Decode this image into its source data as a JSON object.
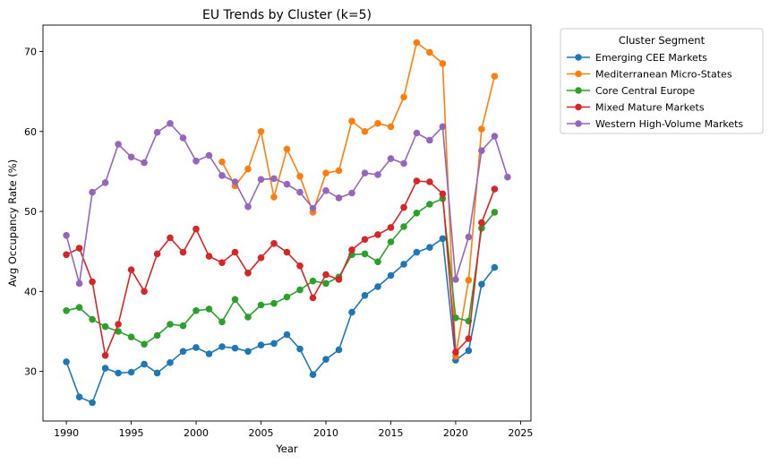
{
  "chart_data": {
    "type": "line",
    "title": "EU Trends by Cluster (k=5)",
    "xlabel": "Year",
    "ylabel": "Avg Occupancy Rate (%)",
    "xlim": [
      1988.2,
      2025.8
    ],
    "ylim": [
      23.8,
      73.3
    ],
    "x_ticks": [
      1990,
      1995,
      2000,
      2005,
      2010,
      2015,
      2020,
      2025
    ],
    "y_ticks": [
      30,
      40,
      50,
      60,
      70
    ],
    "grid": false,
    "legend": {
      "title": "Cluster Segment",
      "placement": "outside-right"
    },
    "series": [
      {
        "name": "Emerging CEE Markets",
        "color": "#1f77b4",
        "x": [
          1990,
          1991,
          1992,
          1993,
          1994,
          1995,
          1996,
          1997,
          1998,
          1999,
          2000,
          2001,
          2002,
          2003,
          2004,
          2005,
          2006,
          2007,
          2008,
          2009,
          2010,
          2011,
          2012,
          2013,
          2014,
          2015,
          2016,
          2017,
          2018,
          2019,
          2020,
          2021,
          2022,
          2023
        ],
        "values": [
          31.2,
          26.8,
          26.1,
          30.4,
          29.8,
          29.9,
          30.9,
          29.8,
          31.1,
          32.5,
          33.0,
          32.2,
          33.1,
          32.9,
          32.5,
          33.3,
          33.5,
          34.6,
          32.8,
          29.6,
          31.5,
          32.7,
          37.4,
          39.5,
          40.6,
          42.0,
          43.4,
          44.9,
          45.5,
          46.6,
          31.4,
          32.6,
          40.9,
          43.0
        ]
      },
      {
        "name": "Mediterranean Micro-States",
        "color": "#ff7f0e",
        "x": [
          2002,
          2003,
          2004,
          2005,
          2006,
          2007,
          2008,
          2009,
          2010,
          2011,
          2012,
          2013,
          2014,
          2015,
          2016,
          2017,
          2018,
          2019,
          2020,
          2021,
          2022,
          2023
        ],
        "values": [
          56.2,
          53.2,
          55.3,
          60.0,
          51.8,
          57.8,
          54.4,
          49.9,
          54.8,
          55.1,
          61.3,
          60.0,
          61.0,
          60.6,
          64.3,
          71.1,
          69.9,
          68.5,
          31.9,
          41.4,
          60.3,
          66.9
        ]
      },
      {
        "name": "Core Central Europe",
        "color": "#2ca02c",
        "x": [
          1990,
          1991,
          1992,
          1993,
          1994,
          1995,
          1996,
          1997,
          1998,
          1999,
          2000,
          2001,
          2002,
          2003,
          2004,
          2005,
          2006,
          2007,
          2008,
          2009,
          2010,
          2011,
          2012,
          2013,
          2014,
          2015,
          2016,
          2017,
          2018,
          2019,
          2020,
          2021,
          2022,
          2023
        ],
        "values": [
          37.6,
          38.0,
          36.5,
          35.6,
          35.0,
          34.3,
          33.4,
          34.5,
          35.9,
          35.7,
          37.6,
          37.8,
          36.2,
          39.0,
          36.8,
          38.3,
          38.5,
          39.3,
          40.2,
          41.3,
          41.0,
          41.8,
          44.6,
          44.7,
          43.7,
          46.2,
          48.1,
          49.8,
          50.9,
          51.6,
          36.7,
          36.3,
          47.9,
          49.9
        ]
      },
      {
        "name": "Mixed Mature Markets",
        "color": "#d62728",
        "x": [
          1990,
          1991,
          1992,
          1993,
          1994,
          1995,
          1996,
          1997,
          1998,
          1999,
          2000,
          2001,
          2002,
          2003,
          2004,
          2005,
          2006,
          2007,
          2008,
          2009,
          2010,
          2011,
          2012,
          2013,
          2014,
          2015,
          2016,
          2017,
          2018,
          2019,
          2020,
          2021,
          2022,
          2023
        ],
        "values": [
          44.6,
          45.4,
          41.2,
          32.0,
          35.9,
          42.7,
          40.0,
          44.7,
          46.7,
          44.9,
          47.8,
          44.4,
          43.6,
          44.9,
          42.3,
          44.2,
          46.0,
          44.9,
          43.2,
          39.2,
          42.1,
          41.5,
          45.2,
          46.5,
          47.1,
          48.0,
          50.5,
          53.8,
          53.7,
          52.2,
          32.4,
          34.1,
          48.6,
          52.8
        ]
      },
      {
        "name": "Western High-Volume Markets",
        "color": "#9467bd",
        "x": [
          1990,
          1991,
          1992,
          1993,
          1994,
          1995,
          1996,
          1997,
          1998,
          1999,
          2000,
          2001,
          2002,
          2003,
          2004,
          2005,
          2006,
          2007,
          2008,
          2009,
          2010,
          2011,
          2012,
          2013,
          2014,
          2015,
          2016,
          2017,
          2018,
          2019,
          2020,
          2021,
          2022,
          2023,
          2024
        ],
        "values": [
          47.0,
          41.0,
          52.4,
          53.6,
          58.4,
          56.8,
          56.1,
          59.9,
          61.0,
          59.2,
          56.3,
          57.0,
          54.5,
          53.7,
          50.6,
          54.0,
          54.1,
          53.4,
          52.4,
          50.4,
          52.6,
          51.7,
          52.3,
          54.8,
          54.6,
          56.6,
          56.0,
          59.8,
          58.9,
          60.6,
          41.5,
          46.8,
          57.6,
          59.4,
          54.3
        ]
      }
    ]
  }
}
